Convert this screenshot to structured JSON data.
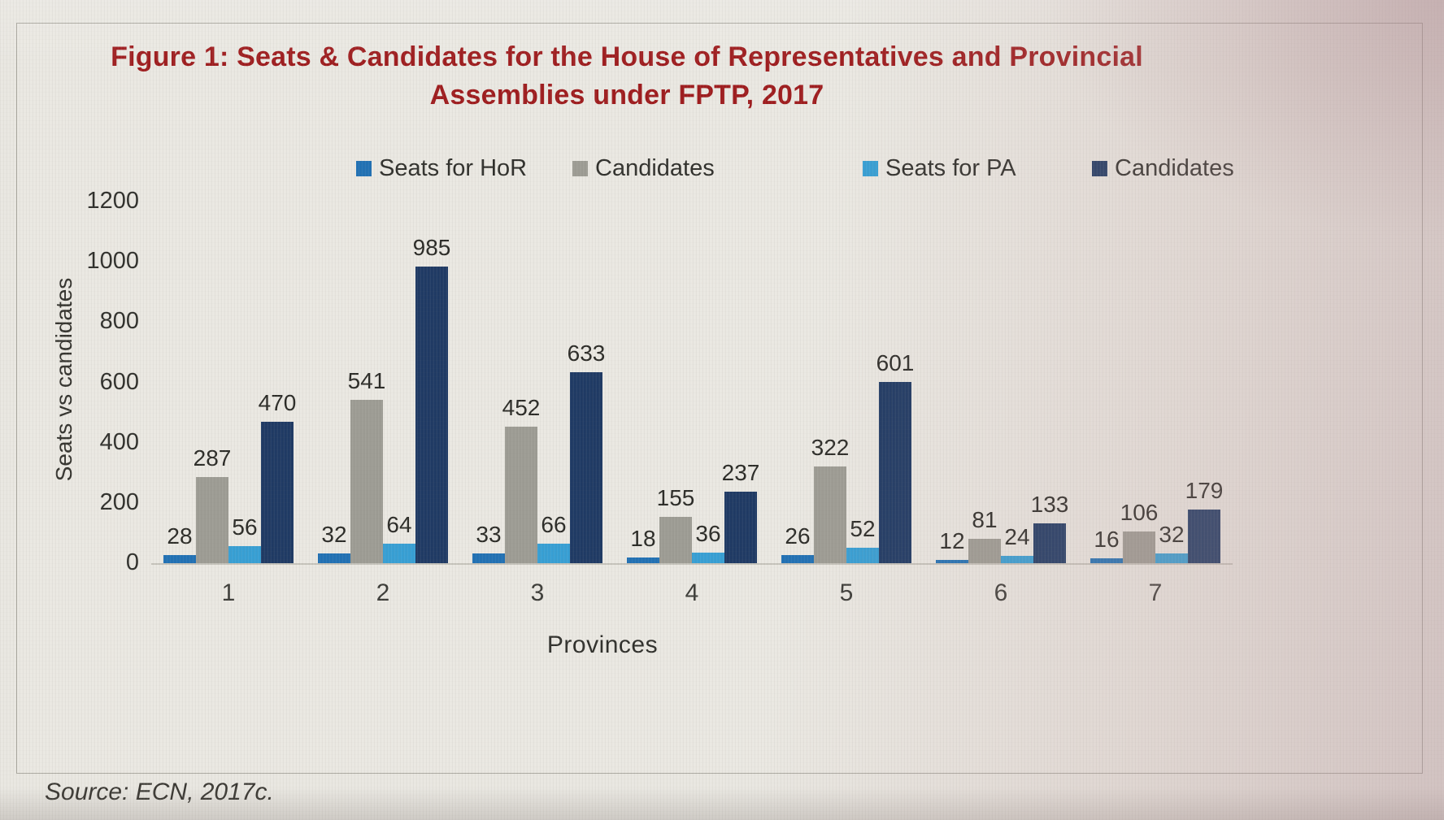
{
  "page": {
    "source_note": "Source: ECN, 2017c."
  },
  "chart": {
    "title_line1": "Figure 1: Seats & Candidates for the House of Representatives and Provincial",
    "title_line2": "Assemblies under FPTP, 2017",
    "ylabel": "Seats vs candidates",
    "xlabel": "Provinces"
  },
  "chart_data": {
    "type": "bar",
    "title": "Figure 1: Seats & Candidates for the House of Representatives and Provincial Assemblies under FPTP, 2017",
    "xlabel": "Provinces",
    "ylabel": "Seats vs candidates",
    "ylim": [
      0,
      1200
    ],
    "yticks": [
      0,
      200,
      400,
      600,
      800,
      1000,
      1200
    ],
    "categories": [
      "1",
      "2",
      "3",
      "4",
      "5",
      "6",
      "7"
    ],
    "series": [
      {
        "name": "Seats for HoR",
        "color": "#2171b4",
        "values": [
          28,
          32,
          33,
          18,
          26,
          12,
          16
        ]
      },
      {
        "name": "Candidates",
        "color": "#9d9c94",
        "values": [
          287,
          541,
          452,
          155,
          322,
          81,
          106
        ]
      },
      {
        "name": "Seats for PA",
        "color": "#379fd4",
        "values": [
          56,
          64,
          66,
          36,
          52,
          24,
          32
        ]
      },
      {
        "name": "Candidates",
        "color": "#1f3a64",
        "values": [
          470,
          985,
          633,
          237,
          601,
          133,
          179
        ]
      }
    ],
    "legend_position": "top",
    "grid": false,
    "data_labels": true,
    "colors": {
      "title": "#9e1c1e",
      "axis_text": "#30302c"
    }
  }
}
